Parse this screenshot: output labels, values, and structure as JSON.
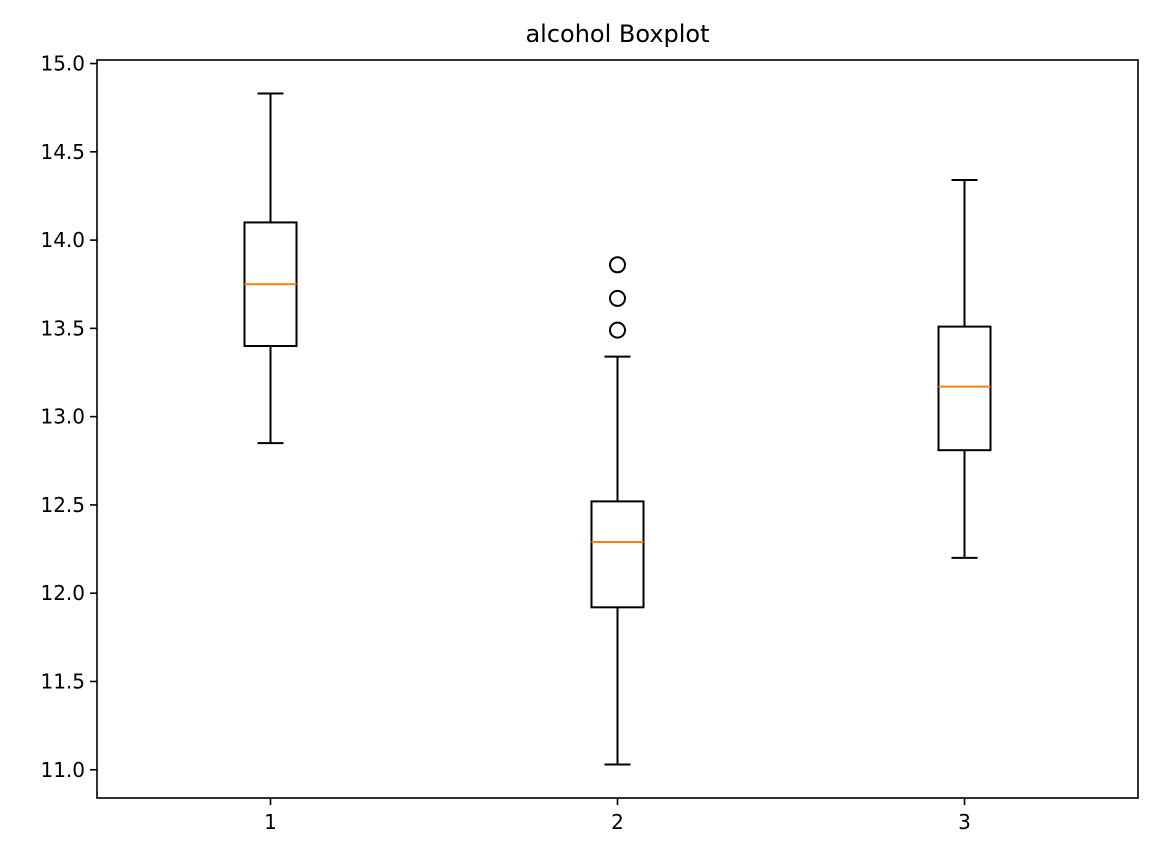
{
  "chart_data": {
    "type": "boxplot",
    "title": "alcohol Boxplot",
    "xlabel": "",
    "ylabel": "",
    "ylim": [
      10.84,
      15.02
    ],
    "xlim": [
      0.5,
      3.5
    ],
    "yticks": [
      "11.0",
      "11.5",
      "12.0",
      "12.5",
      "13.0",
      "13.5",
      "14.0",
      "14.5",
      "15.0"
    ],
    "ytick_values": [
      11.0,
      11.5,
      12.0,
      12.5,
      13.0,
      13.5,
      14.0,
      14.5,
      15.0
    ],
    "categories": [
      "1",
      "2",
      "3"
    ],
    "boxes": [
      {
        "label": "1",
        "whisker_low": 12.85,
        "q1": 13.4,
        "median": 13.75,
        "q3": 14.1,
        "whisker_high": 14.83,
        "fliers": []
      },
      {
        "label": "2",
        "whisker_low": 11.03,
        "q1": 11.92,
        "median": 12.29,
        "q3": 12.52,
        "whisker_high": 13.34,
        "fliers": [
          13.49,
          13.67,
          13.86
        ]
      },
      {
        "label": "3",
        "whisker_low": 12.2,
        "q1": 12.81,
        "median": 13.17,
        "q3": 13.51,
        "whisker_high": 14.34,
        "fliers": []
      }
    ],
    "colors": {
      "box": "#000000",
      "median": "#ff7f0e",
      "flier": "#000000"
    },
    "grid": false,
    "legend": "none"
  }
}
